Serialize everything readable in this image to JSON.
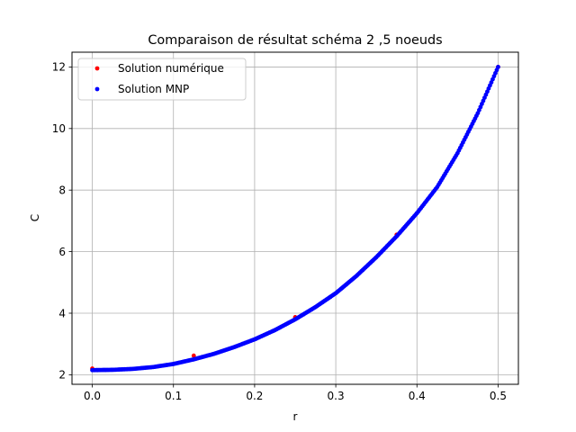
{
  "chart_data": {
    "type": "scatter",
    "title": "Comparaison de résultat schéma 2 ,5 noeuds",
    "xlabel": "r",
    "ylabel": "C",
    "xlim": [
      -0.025,
      0.525
    ],
    "ylim": [
      1.69,
      12.48
    ],
    "xticks": [
      0.0,
      0.1,
      0.2,
      0.3,
      0.4,
      0.5
    ],
    "xtick_labels": [
      "0.0",
      "0.1",
      "0.2",
      "0.3",
      "0.4",
      "0.5"
    ],
    "yticks": [
      2,
      4,
      6,
      8,
      10,
      12
    ],
    "ytick_labels": [
      "2",
      "4",
      "6",
      "8",
      "10",
      "12"
    ],
    "grid": true,
    "legend_position": "top-left",
    "series": [
      {
        "name": "Solution numérique",
        "color": "#ff0000",
        "marker": "dot",
        "x": [
          0.0,
          0.125,
          0.25,
          0.375,
          0.5
        ],
        "y": [
          2.2,
          2.62,
          3.87,
          6.55,
          12.0
        ]
      },
      {
        "name": "Solution MNP",
        "color": "#0000ff",
        "marker": "dot",
        "x": [
          0.0,
          0.025,
          0.05,
          0.075,
          0.1,
          0.125,
          0.15,
          0.175,
          0.2,
          0.225,
          0.25,
          0.275,
          0.3,
          0.325,
          0.35,
          0.375,
          0.4,
          0.425,
          0.45,
          0.475,
          0.5
        ],
        "y": [
          2.15,
          2.16,
          2.19,
          2.25,
          2.35,
          2.5,
          2.68,
          2.9,
          3.15,
          3.45,
          3.8,
          4.2,
          4.65,
          5.2,
          5.82,
          6.5,
          7.25,
          8.1,
          9.2,
          10.5,
          12.0
        ]
      }
    ]
  }
}
